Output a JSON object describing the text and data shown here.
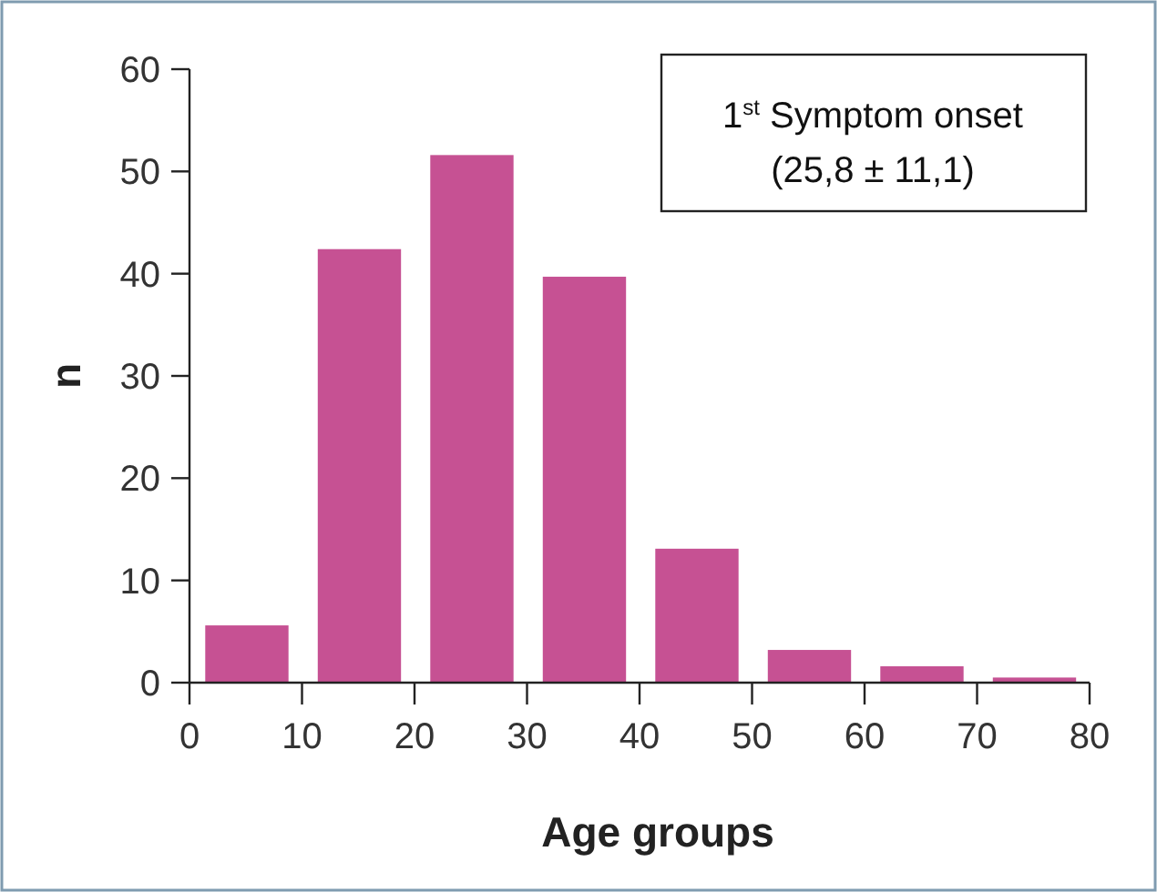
{
  "chart_data": {
    "type": "histogram",
    "xlabel": "Age groups",
    "ylabel": "n",
    "bins": [
      0,
      10,
      20,
      30,
      40,
      50,
      60,
      70,
      80
    ],
    "values": [
      5.6,
      42.4,
      51.6,
      39.7,
      13.1,
      3.2,
      1.6,
      0.5
    ],
    "color": "#c65193",
    "xlim": [
      0,
      80
    ],
    "xticks": [
      0,
      10,
      20,
      30,
      40,
      50,
      60,
      70,
      80
    ],
    "ylim": [
      0,
      60
    ],
    "yticks": [
      0,
      10,
      20,
      30,
      40,
      50,
      60
    ],
    "grid": false,
    "annotations": [
      "1$^{st}$ Symptom onset",
      "(25,8 ± 11,1)"
    ]
  }
}
